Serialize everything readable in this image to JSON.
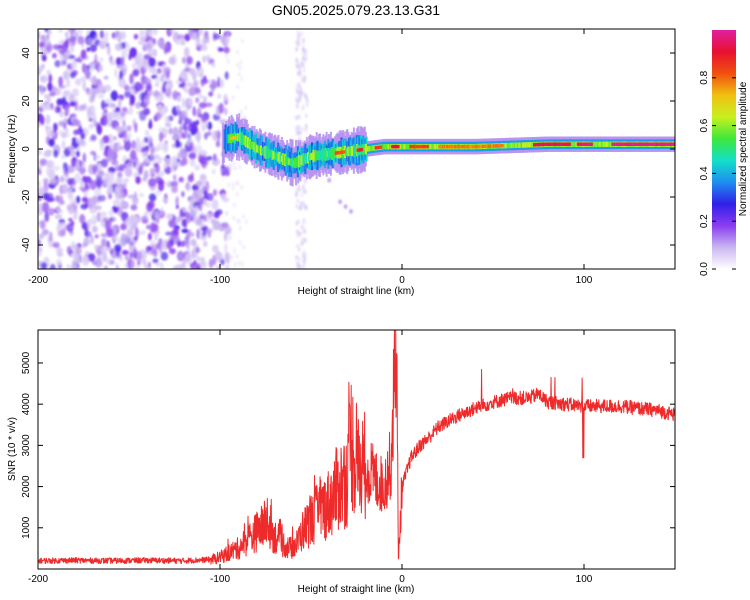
{
  "title": "GN05.2025.079.23.13.G31",
  "colors": {
    "snr_line": "#ee2a2a",
    "colormap": [
      "#ffffff",
      "#c9b6f0",
      "#8a3cf0",
      "#3020e8",
      "#1e8ef0",
      "#12e0c8",
      "#3ee83a",
      "#c8f020",
      "#f0c010",
      "#f05010",
      "#e81030",
      "#e020a0"
    ]
  },
  "chart_data": [
    {
      "type": "heatmap",
      "xlabel": "Height of straight line (km)",
      "ylabel": "Frequency (Hz)",
      "xlim": [
        -200,
        150
      ],
      "ylim": [
        -50,
        50
      ],
      "xticks": [
        -200,
        -100,
        0,
        100
      ],
      "yticks": [
        -40,
        -20,
        0,
        20,
        40
      ],
      "colorbar": {
        "label": "Normalized spectral amplitude",
        "range": [
          0,
          1
        ],
        "ticks": [
          0.0,
          0.2,
          0.4,
          0.6,
          0.8
        ],
        "tick_labels": [
          "0.0",
          "0.2",
          "0.4",
          "0.6",
          "0.8"
        ]
      },
      "features": {
        "noise_region_x": [
          -200,
          -95
        ],
        "noise_streak_x": [
          -58,
          -52
        ],
        "signal_track": [
          {
            "x": -98,
            "y": 4
          },
          {
            "x": -90,
            "y": 5
          },
          {
            "x": -80,
            "y": 0
          },
          {
            "x": -70,
            "y": -3
          },
          {
            "x": -60,
            "y": -6
          },
          {
            "x": -50,
            "y": -3
          },
          {
            "x": -40,
            "y": -2
          },
          {
            "x": -30,
            "y": -1
          },
          {
            "x": -20,
            "y": 0
          },
          {
            "x": -10,
            "y": 1
          },
          {
            "x": 0,
            "y": 1
          },
          {
            "x": 20,
            "y": 1
          },
          {
            "x": 40,
            "y": 1
          },
          {
            "x": 60,
            "y": 1.5
          },
          {
            "x": 80,
            "y": 2
          },
          {
            "x": 100,
            "y": 2
          },
          {
            "x": 120,
            "y": 2
          },
          {
            "x": 150,
            "y": 2
          }
        ]
      }
    },
    {
      "type": "line",
      "xlabel": "Height of straight line (km)",
      "ylabel": "SNR (10 * v/v)",
      "xlim": [
        -200,
        150
      ],
      "ylim": [
        0,
        5800
      ],
      "xticks": [
        -200,
        -100,
        0,
        100
      ],
      "yticks": [
        1000,
        2000,
        3000,
        4000,
        5000
      ],
      "series": [
        {
          "x": [
            -200,
            -180,
            -160,
            -140,
            -120,
            -105,
            -100,
            -95,
            -90,
            -85,
            -80,
            -75,
            -70,
            -65,
            -62,
            -58,
            -55,
            -50,
            -45,
            -40,
            -35,
            -30,
            -28,
            -25,
            -20,
            -15,
            -10,
            -6,
            -4,
            -3,
            -2,
            0,
            5,
            10,
            15,
            20,
            30,
            40,
            50,
            60,
            70,
            75,
            80,
            90,
            100,
            110,
            120,
            130,
            140,
            150
          ],
          "y": [
            200,
            210,
            200,
            210,
            200,
            230,
            280,
            400,
            500,
            700,
            900,
            1100,
            800,
            600,
            500,
            600,
            900,
            1200,
            1400,
            1600,
            2000,
            2200,
            3200,
            2400,
            2500,
            2200,
            2000,
            2600,
            4800,
            5700,
            200,
            2000,
            2700,
            3000,
            3200,
            3450,
            3700,
            3900,
            4050,
            4150,
            4150,
            4250,
            4050,
            4000,
            3950,
            3950,
            3950,
            3900,
            3850,
            3750
          ]
        }
      ]
    }
  ]
}
